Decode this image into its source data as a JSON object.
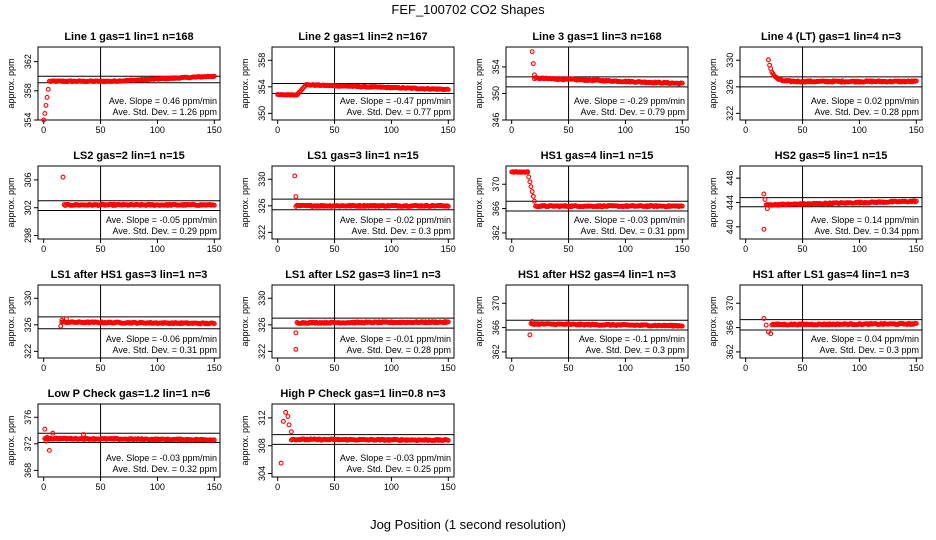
{
  "title": "FEF_100702  CO2 Shapes",
  "xlabel": "Jog Position (1 second resolution)",
  "ylabel": "approx. ppm",
  "colors": {
    "points": "#ff0000",
    "lines": "#000000"
  },
  "chart_data": [
    {
      "type": "scatter",
      "title": "Line 1 gas=1 lin=1 n=168",
      "xlim": [
        -5,
        155
      ],
      "ylim": [
        354,
        364
      ],
      "yticks": [
        354,
        358,
        362
      ],
      "xticks": [
        0,
        50,
        100,
        150
      ],
      "ylabel": "approx. ppm",
      "hlines": [
        360.0,
        359.1
      ],
      "vline": 50,
      "shape": "rise",
      "rise_from": 353.8,
      "level": 359.3,
      "end_level": 360.0,
      "start": 0,
      "end": 150,
      "slope_text": "Ave. Slope =  0.46  ppm/min",
      "std_text": "Ave. Std. Dev. =  1.26  ppm"
    },
    {
      "type": "scatter",
      "title": "Line 2 gas=1 lin=2 n=167",
      "xlim": [
        -5,
        155
      ],
      "ylim": [
        349,
        360
      ],
      "yticks": [
        350,
        354,
        358
      ],
      "xticks": [
        0,
        50,
        100,
        150
      ],
      "ylabel": "approx. ppm",
      "hlines": [
        354.5,
        353.0
      ],
      "vline": 50,
      "shape": "step",
      "pre_level": 352.8,
      "pre_end": 17,
      "level": 354.3,
      "end_level": 353.6,
      "start": 0,
      "end": 150,
      "slope_text": "Ave. Slope = -0.47  ppm/min",
      "std_text": "Ave. Std. Dev. =  0.77  ppm"
    },
    {
      "type": "scatter",
      "title": "Line 3 gas=1 lin=3 n=168",
      "xlim": [
        -5,
        155
      ],
      "ylim": [
        346,
        357
      ],
      "yticks": [
        346,
        350,
        354
      ],
      "xticks": [
        0,
        50,
        100,
        150
      ],
      "ylabel": "approx. ppm",
      "hlines": [
        352.5,
        351.0
      ],
      "vline": 50,
      "shape": "drop",
      "spikes": [
        [
          18,
          356.3
        ],
        [
          19,
          354.5
        ],
        [
          20,
          352.8
        ]
      ],
      "level": 352.3,
      "end_level": 351.5,
      "start": 20,
      "end": 150,
      "slope_text": "Ave. Slope = -0.29  ppm/min",
      "std_text": "Ave. Std. Dev. =  0.79  ppm"
    },
    {
      "type": "scatter",
      "title": "Line 4 (LT) gas=1 lin=4 n=3",
      "xlim": [
        -5,
        155
      ],
      "ylim": [
        321,
        332
      ],
      "yticks": [
        322,
        326,
        330
      ],
      "xticks": [
        0,
        50,
        100,
        150
      ],
      "ylabel": "approx. ppm",
      "hlines": [
        327.5,
        326.0
      ],
      "vline": 50,
      "shape": "decay",
      "peak": [
        20,
        330.0
      ],
      "level": 326.8,
      "end_level": 326.8,
      "start": 20,
      "end": 150,
      "slope_text": "Ave. Slope =  0.02  ppm/min",
      "std_text": "Ave. Std. Dev. =  0.28  ppm"
    },
    {
      "type": "scatter",
      "title": "LS2 gas=2 lin=1 n=15",
      "xlim": [
        -5,
        155
      ],
      "ylim": [
        297.5,
        308
      ],
      "yticks": [
        298,
        302,
        306
      ],
      "xticks": [
        0,
        50,
        100,
        150
      ],
      "ylabel": "approx. ppm",
      "hlines": [
        303.0,
        301.6
      ],
      "vline": 50,
      "shape": "spikeflat",
      "spikes": [
        [
          17,
          306.4
        ]
      ],
      "level": 302.4,
      "end_level": 302.4,
      "start": 18,
      "end": 150,
      "slope_text": "Ave. Slope = -0.05  ppm/min",
      "std_text": "Ave. Std. Dev. =  0.29  ppm"
    },
    {
      "type": "scatter",
      "title": "LS1 gas=3 lin=1 n=15",
      "xlim": [
        -5,
        155
      ],
      "ylim": [
        321,
        332
      ],
      "yticks": [
        322,
        326,
        330
      ],
      "xticks": [
        0,
        50,
        100,
        150
      ],
      "ylabel": "approx. ppm",
      "hlines": [
        327.0,
        325.4
      ],
      "vline": 50,
      "shape": "spikeflat",
      "spikes": [
        [
          15,
          330.5
        ],
        [
          16,
          327.4
        ]
      ],
      "level": 326.0,
      "end_level": 326.0,
      "start": 16,
      "end": 150,
      "slope_text": "Ave. Slope = -0.02  ppm/min",
      "std_text": "Ave. Std. Dev. =  0.3  ppm"
    },
    {
      "type": "scatter",
      "title": "HS1 gas=4 lin=1 n=15",
      "xlim": [
        -5,
        155
      ],
      "ylim": [
        361,
        373
      ],
      "yticks": [
        362,
        366,
        370
      ],
      "xticks": [
        0,
        50,
        100,
        150
      ],
      "ylabel": "approx. ppm",
      "hlines": [
        367.2,
        365.6
      ],
      "vline": 50,
      "shape": "plateau",
      "pre_level": 372.0,
      "pre_start": 0,
      "pre_end": 14,
      "level": 366.4,
      "end_level": 366.4,
      "start": 14,
      "end": 150,
      "slope_text": "Ave. Slope = -0.03  ppm/min",
      "std_text": "Ave. Std. Dev. =  0.31  ppm"
    },
    {
      "type": "scatter",
      "title": "HS2 gas=5 lin=1 n=15",
      "xlim": [
        -5,
        155
      ],
      "ylim": [
        438,
        450
      ],
      "yticks": [
        440,
        444,
        448
      ],
      "xticks": [
        0,
        50,
        100,
        150
      ],
      "ylabel": "approx. ppm",
      "hlines": [
        444.8,
        443.3
      ],
      "vline": 50,
      "shape": "spikeflat",
      "spikes": [
        [
          16,
          445.4
        ],
        [
          17,
          444.5
        ],
        [
          16,
          439.6
        ],
        [
          19,
          443.0
        ]
      ],
      "level": 443.6,
      "end_level": 444.2,
      "start": 18,
      "end": 150,
      "slope_text": "Ave. Slope =  0.14  ppm/min",
      "std_text": "Ave. Std. Dev. =  0.34  ppm"
    },
    {
      "type": "scatter",
      "title": "LS1 after HS1 gas=3 lin=1 n=3",
      "xlim": [
        -5,
        155
      ],
      "ylim": [
        321,
        332
      ],
      "yticks": [
        322,
        326,
        330
      ],
      "xticks": [
        0,
        50,
        100,
        150
      ],
      "ylabel": "approx. ppm",
      "hlines": [
        327.2,
        325.4
      ],
      "vline": 50,
      "shape": "spikeflat",
      "spikes": [
        [
          15,
          325.8
        ],
        [
          16,
          326.7
        ],
        [
          20,
          326.9
        ]
      ],
      "level": 326.4,
      "end_level": 326.2,
      "start": 16,
      "end": 150,
      "slope_text": "Ave. Slope = -0.06  ppm/min",
      "std_text": "Ave. Std. Dev. =  0.31  ppm"
    },
    {
      "type": "scatter",
      "title": "LS1 after LS2 gas=3 lin=1 n=3",
      "xlim": [
        -5,
        155
      ],
      "ylim": [
        321,
        332
      ],
      "yticks": [
        322,
        326,
        330
      ],
      "xticks": [
        0,
        50,
        100,
        150
      ],
      "ylabel": "approx. ppm",
      "hlines": [
        327.0,
        325.5
      ],
      "vline": 50,
      "shape": "spikeflat",
      "spikes": [
        [
          16,
          322.3
        ],
        [
          16,
          324.8
        ]
      ],
      "level": 326.3,
      "end_level": 326.4,
      "start": 17,
      "end": 150,
      "slope_text": "Ave. Slope = -0.01  ppm/min",
      "std_text": "Ave. Std. Dev. =  0.28  ppm"
    },
    {
      "type": "scatter",
      "title": "HS1 after HS2 gas=4 lin=1 n=3",
      "xlim": [
        -5,
        155
      ],
      "ylim": [
        361,
        373
      ],
      "yticks": [
        362,
        366,
        370
      ],
      "xticks": [
        0,
        50,
        100,
        150
      ],
      "ylabel": "approx. ppm",
      "hlines": [
        367.2,
        365.6
      ],
      "vline": 50,
      "shape": "spikeflat",
      "spikes": [
        [
          16,
          364.8
        ],
        [
          18,
          367.0
        ]
      ],
      "level": 366.6,
      "end_level": 366.3,
      "start": 17,
      "end": 150,
      "slope_text": "Ave. Slope = -0.1  ppm/min",
      "std_text": "Ave. Std. Dev. =  0.3  ppm"
    },
    {
      "type": "scatter",
      "title": "HS1 after LS1 gas=4 lin=1 n=3",
      "xlim": [
        -5,
        155
      ],
      "ylim": [
        361,
        373
      ],
      "yticks": [
        362,
        366,
        370
      ],
      "xticks": [
        0,
        50,
        100,
        150
      ],
      "ylabel": "approx. ppm",
      "hlines": [
        367.3,
        365.6
      ],
      "vline": 50,
      "shape": "spikeflat",
      "spikes": [
        [
          16,
          367.5
        ],
        [
          18,
          366.4
        ],
        [
          20,
          365.3
        ],
        [
          22,
          365.0
        ]
      ],
      "level": 366.5,
      "end_level": 366.6,
      "start": 23,
      "end": 150,
      "slope_text": "Ave. Slope =  0.04  ppm/min",
      "std_text": "Ave. Std. Dev. =  0.3  ppm"
    },
    {
      "type": "scatter",
      "title": "Low P Check gas=1.2 lin=1 n=6",
      "xlim": [
        -5,
        155
      ],
      "ylim": [
        367,
        378
      ],
      "yticks": [
        368,
        372,
        376
      ],
      "xticks": [
        0,
        50,
        100,
        150
      ],
      "ylabel": "approx. ppm",
      "hlines": [
        373.6,
        372.2
      ],
      "vline": 50,
      "shape": "spikeflat",
      "spikes": [
        [
          1,
          374.2
        ],
        [
          3,
          373.0
        ],
        [
          5,
          371.0
        ],
        [
          2,
          372.4
        ],
        [
          8,
          373.6
        ],
        [
          35,
          373.4
        ]
      ],
      "level": 372.8,
      "end_level": 372.6,
      "start": 1,
      "end": 150,
      "slope_text": "Ave. Slope = -0.03  ppm/min",
      "std_text": "Ave. Std. Dev. =  0.32  ppm"
    },
    {
      "type": "scatter",
      "title": "High P Check gas=1 lin=0.8 n=3",
      "xlim": [
        -5,
        155
      ],
      "ylim": [
        303.5,
        314
      ],
      "yticks": [
        304,
        308,
        312
      ],
      "xticks": [
        0,
        50,
        100,
        150
      ],
      "ylabel": "approx. ppm",
      "hlines": [
        309.6,
        308.2
      ],
      "vline": 50,
      "shape": "spikeflat",
      "spikes": [
        [
          3,
          305.5
        ],
        [
          5,
          311.5
        ],
        [
          7,
          312.8
        ],
        [
          9,
          312.2
        ],
        [
          10,
          311.0
        ],
        [
          12,
          310.0
        ]
      ],
      "level": 308.9,
      "end_level": 308.8,
      "start": 12,
      "end": 150,
      "slope_text": "Ave. Slope = -0.03  ppm/min",
      "std_text": "Ave. Std. Dev. =  0.25  ppm"
    }
  ]
}
